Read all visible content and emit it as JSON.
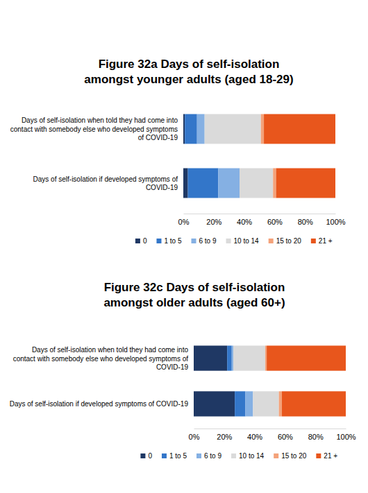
{
  "chart_data": [
    {
      "type": "bar",
      "orientation": "horizontal",
      "stacked": true,
      "legend": "bottom",
      "title": "Figure 32a Days of self-isolation amongst younger adults (aged 18-29)",
      "categories": [
        "Days of self-isolation when told they had come into contact with somebody else who developed symptoms of COVID-19",
        "Days of self-isolation if developed symptoms of COVID-19"
      ],
      "series": [
        {
          "name": "0",
          "color": "#1f3864",
          "values": [
            1,
            3
          ]
        },
        {
          "name": "1 to 5",
          "color": "#3376c9",
          "values": [
            8,
            20
          ]
        },
        {
          "name": "6 to 9",
          "color": "#85b0e3",
          "values": [
            5,
            14
          ]
        },
        {
          "name": "10 to 14",
          "color": "#dadada",
          "values": [
            37,
            22
          ]
        },
        {
          "name": "15 to 20",
          "color": "#f4a27a",
          "values": [
            2,
            2
          ]
        },
        {
          "name": "21 +",
          "color": "#e8561c",
          "values": [
            47,
            39
          ]
        }
      ],
      "xlim": [
        0,
        100
      ],
      "xticks": [
        {
          "value": 0,
          "label": "0%"
        },
        {
          "value": 20,
          "label": "20%"
        },
        {
          "value": 40,
          "label": "40%"
        },
        {
          "value": 60,
          "label": "60%"
        },
        {
          "value": 80,
          "label": "80%"
        },
        {
          "value": 100,
          "label": "100%"
        }
      ]
    },
    {
      "type": "bar",
      "orientation": "horizontal",
      "stacked": true,
      "legend": "bottom",
      "title": "Figure 32c Days of self-isolation amongst older adults (aged 60+)",
      "categories": [
        "Days of self-isolation when told they had come into contact with somebody else who developed symptoms of COVID-19",
        "Days of self-isolation if developed symptoms of COVID-19"
      ],
      "series": [
        {
          "name": "0",
          "color": "#1f3864",
          "values": [
            22,
            27
          ]
        },
        {
          "name": "1 to 5",
          "color": "#3376c9",
          "values": [
            3,
            7
          ]
        },
        {
          "name": "6 to 9",
          "color": "#85b0e3",
          "values": [
            1,
            5
          ]
        },
        {
          "name": "10 to 14",
          "color": "#dadada",
          "values": [
            21,
            17
          ]
        },
        {
          "name": "15 to 20",
          "color": "#f4a27a",
          "values": [
            1,
            2
          ]
        },
        {
          "name": "21 +",
          "color": "#e8561c",
          "values": [
            52,
            42
          ]
        }
      ],
      "xlim": [
        0,
        100
      ],
      "xticks": [
        {
          "value": 0,
          "label": "0%"
        },
        {
          "value": 20,
          "label": "20%"
        },
        {
          "value": 40,
          "label": "40%"
        },
        {
          "value": 60,
          "label": "60%"
        },
        {
          "value": 80,
          "label": "80%"
        },
        {
          "value": 100,
          "label": "100%"
        }
      ]
    }
  ]
}
